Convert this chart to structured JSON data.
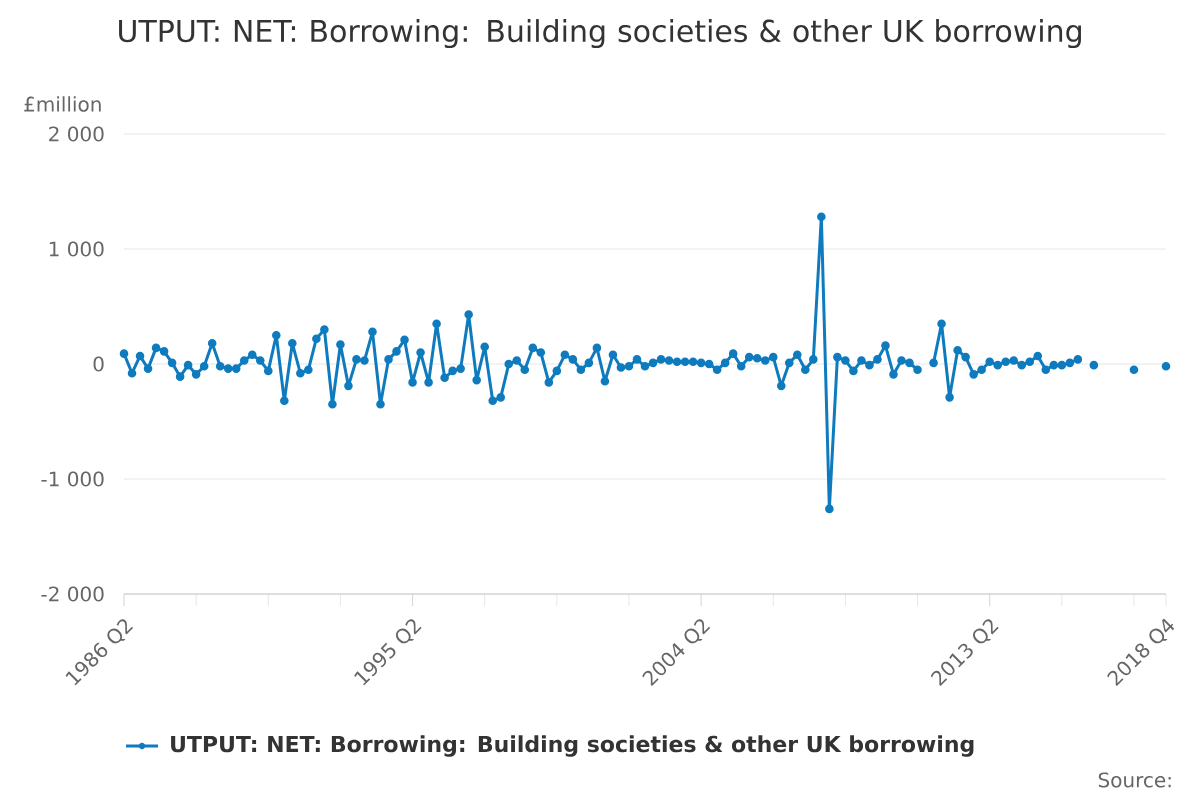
{
  "chart_data": {
    "type": "line",
    "title": "UTPUT: NET: Borrowing: Building societies & other UK borrowing",
    "ylabel": "£million",
    "categories": [
      "1986 Q2",
      null,
      null,
      null,
      null,
      null,
      null,
      null,
      null,
      null,
      null,
      null,
      null,
      null,
      null,
      null,
      null,
      null,
      null,
      null,
      null,
      null,
      null,
      null,
      null,
      null,
      null,
      null,
      null,
      null,
      null,
      null,
      null,
      null,
      null,
      null,
      "1995 Q2",
      null,
      null,
      null,
      null,
      null,
      null,
      null,
      null,
      null,
      null,
      null,
      null,
      null,
      null,
      null,
      null,
      null,
      null,
      null,
      null,
      null,
      null,
      null,
      null,
      null,
      null,
      null,
      null,
      null,
      null,
      null,
      null,
      null,
      null,
      null,
      "2004 Q2",
      null,
      null,
      null,
      null,
      null,
      null,
      null,
      null,
      null,
      null,
      null,
      null,
      null,
      null,
      null,
      null,
      null,
      null,
      null,
      null,
      null,
      null,
      null,
      null,
      null,
      null,
      null,
      null,
      null,
      null,
      null,
      null,
      null,
      null,
      null,
      "2013 Q2",
      null,
      null,
      null,
      null,
      null,
      null,
      null,
      null,
      null,
      null,
      null,
      null,
      null,
      null,
      null,
      null,
      null,
      null,
      null,
      null,
      null,
      "2018 Q4"
    ],
    "series": [
      {
        "name": "UTPUT: NET: Borrowing: Building societies & other UK borrowing",
        "color": "#0f7bbf",
        "values": [
          90,
          -80,
          70,
          -40,
          140,
          110,
          10,
          -110,
          -10,
          -90,
          -20,
          180,
          -20,
          -40,
          -40,
          30,
          80,
          30,
          -60,
          250,
          -320,
          180,
          -80,
          -50,
          220,
          300,
          -350,
          170,
          -190,
          40,
          30,
          280,
          -350,
          40,
          110,
          210,
          -160,
          100,
          -160,
          350,
          -120,
          -60,
          -40,
          430,
          -140,
          150,
          -320,
          -290,
          0,
          30,
          -50,
          140,
          100,
          -160,
          -60,
          80,
          40,
          -50,
          10,
          140,
          -150,
          80,
          -30,
          -20,
          40,
          -20,
          10,
          40,
          30,
          20,
          20,
          20,
          10,
          0,
          -50,
          10,
          90,
          -20,
          60,
          50,
          30,
          60,
          -190,
          10,
          80,
          -50,
          40,
          1280,
          -1260,
          60,
          30,
          -60,
          30,
          -10,
          40,
          160,
          -90,
          30,
          10,
          -50,
          null,
          10,
          350,
          -290,
          120,
          60,
          -90,
          -50,
          20,
          -10,
          20,
          30,
          -10,
          20,
          70,
          -50,
          -10,
          -10,
          10,
          40,
          null,
          -10,
          null,
          null,
          null,
          null,
          -50,
          null,
          null,
          null,
          -20
        ]
      }
    ],
    "ylim": [
      -2000,
      2000
    ],
    "yticks": [
      {
        "value": -2000,
        "label": "-2 000"
      },
      {
        "value": -1000,
        "label": "-1 000"
      },
      0,
      {
        "value": 1000,
        "label": "1 000"
      },
      {
        "value": 2000,
        "label": "2 000"
      }
    ],
    "grid": "y",
    "legend": "bottom",
    "marker": "circle",
    "line_style": "solid",
    "annotations": [
      "Source:"
    ]
  }
}
